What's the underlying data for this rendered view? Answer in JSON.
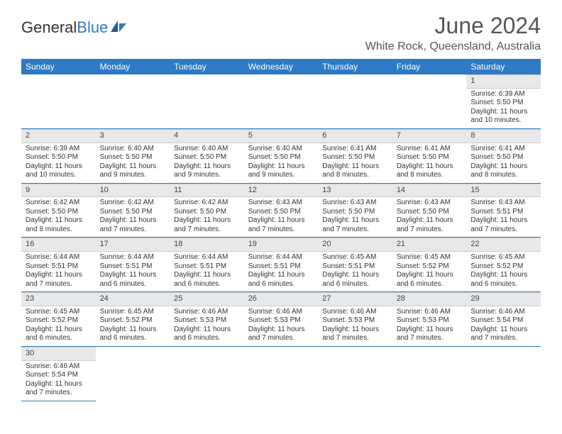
{
  "logo": {
    "text1": "General",
    "text2": "Blue"
  },
  "title": "June 2024",
  "location": "White Rock, Queensland, Australia",
  "colors": {
    "header_bg": "#2f7ac4",
    "header_text": "#ffffff",
    "daynum_bg": "#e8e8e8",
    "row_divider": "#2f7ac4",
    "text": "#333333"
  },
  "weekdays": [
    "Sunday",
    "Monday",
    "Tuesday",
    "Wednesday",
    "Thursday",
    "Friday",
    "Saturday"
  ],
  "weeks": [
    [
      null,
      null,
      null,
      null,
      null,
      null,
      {
        "day": "1",
        "sunrise": "6:39 AM",
        "sunset": "5:50 PM",
        "daylight": "11 hours and 10 minutes."
      }
    ],
    [
      {
        "day": "2",
        "sunrise": "6:39 AM",
        "sunset": "5:50 PM",
        "daylight": "11 hours and 10 minutes."
      },
      {
        "day": "3",
        "sunrise": "6:40 AM",
        "sunset": "5:50 PM",
        "daylight": "11 hours and 9 minutes."
      },
      {
        "day": "4",
        "sunrise": "6:40 AM",
        "sunset": "5:50 PM",
        "daylight": "11 hours and 9 minutes."
      },
      {
        "day": "5",
        "sunrise": "6:40 AM",
        "sunset": "5:50 PM",
        "daylight": "11 hours and 9 minutes."
      },
      {
        "day": "6",
        "sunrise": "6:41 AM",
        "sunset": "5:50 PM",
        "daylight": "11 hours and 8 minutes."
      },
      {
        "day": "7",
        "sunrise": "6:41 AM",
        "sunset": "5:50 PM",
        "daylight": "11 hours and 8 minutes."
      },
      {
        "day": "8",
        "sunrise": "6:41 AM",
        "sunset": "5:50 PM",
        "daylight": "11 hours and 8 minutes."
      }
    ],
    [
      {
        "day": "9",
        "sunrise": "6:42 AM",
        "sunset": "5:50 PM",
        "daylight": "11 hours and 8 minutes."
      },
      {
        "day": "10",
        "sunrise": "6:42 AM",
        "sunset": "5:50 PM",
        "daylight": "11 hours and 7 minutes."
      },
      {
        "day": "11",
        "sunrise": "6:42 AM",
        "sunset": "5:50 PM",
        "daylight": "11 hours and 7 minutes."
      },
      {
        "day": "12",
        "sunrise": "6:43 AM",
        "sunset": "5:50 PM",
        "daylight": "11 hours and 7 minutes."
      },
      {
        "day": "13",
        "sunrise": "6:43 AM",
        "sunset": "5:50 PM",
        "daylight": "11 hours and 7 minutes."
      },
      {
        "day": "14",
        "sunrise": "6:43 AM",
        "sunset": "5:50 PM",
        "daylight": "11 hours and 7 minutes."
      },
      {
        "day": "15",
        "sunrise": "6:43 AM",
        "sunset": "5:51 PM",
        "daylight": "11 hours and 7 minutes."
      }
    ],
    [
      {
        "day": "16",
        "sunrise": "6:44 AM",
        "sunset": "5:51 PM",
        "daylight": "11 hours and 7 minutes."
      },
      {
        "day": "17",
        "sunrise": "6:44 AM",
        "sunset": "5:51 PM",
        "daylight": "11 hours and 6 minutes."
      },
      {
        "day": "18",
        "sunrise": "6:44 AM",
        "sunset": "5:51 PM",
        "daylight": "11 hours and 6 minutes."
      },
      {
        "day": "19",
        "sunrise": "6:44 AM",
        "sunset": "5:51 PM",
        "daylight": "11 hours and 6 minutes."
      },
      {
        "day": "20",
        "sunrise": "6:45 AM",
        "sunset": "5:51 PM",
        "daylight": "11 hours and 6 minutes."
      },
      {
        "day": "21",
        "sunrise": "6:45 AM",
        "sunset": "5:52 PM",
        "daylight": "11 hours and 6 minutes."
      },
      {
        "day": "22",
        "sunrise": "6:45 AM",
        "sunset": "5:52 PM",
        "daylight": "11 hours and 6 minutes."
      }
    ],
    [
      {
        "day": "23",
        "sunrise": "6:45 AM",
        "sunset": "5:52 PM",
        "daylight": "11 hours and 6 minutes."
      },
      {
        "day": "24",
        "sunrise": "6:45 AM",
        "sunset": "5:52 PM",
        "daylight": "11 hours and 6 minutes."
      },
      {
        "day": "25",
        "sunrise": "6:46 AM",
        "sunset": "5:53 PM",
        "daylight": "11 hours and 6 minutes."
      },
      {
        "day": "26",
        "sunrise": "6:46 AM",
        "sunset": "5:53 PM",
        "daylight": "11 hours and 7 minutes."
      },
      {
        "day": "27",
        "sunrise": "6:46 AM",
        "sunset": "5:53 PM",
        "daylight": "11 hours and 7 minutes."
      },
      {
        "day": "28",
        "sunrise": "6:46 AM",
        "sunset": "5:53 PM",
        "daylight": "11 hours and 7 minutes."
      },
      {
        "day": "29",
        "sunrise": "6:46 AM",
        "sunset": "5:54 PM",
        "daylight": "11 hours and 7 minutes."
      }
    ],
    [
      {
        "day": "30",
        "sunrise": "6:46 AM",
        "sunset": "5:54 PM",
        "daylight": "11 hours and 7 minutes."
      },
      null,
      null,
      null,
      null,
      null,
      null
    ]
  ],
  "labels": {
    "sunrise": "Sunrise:",
    "sunset": "Sunset:",
    "daylight": "Daylight:"
  }
}
